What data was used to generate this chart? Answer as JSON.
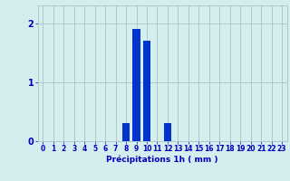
{
  "categories": [
    0,
    1,
    2,
    3,
    4,
    5,
    6,
    7,
    8,
    9,
    10,
    11,
    12,
    13,
    14,
    15,
    16,
    17,
    18,
    19,
    20,
    21,
    22,
    23
  ],
  "values": [
    0,
    0,
    0,
    0,
    0,
    0,
    0,
    0,
    0.3,
    1.9,
    1.7,
    0,
    0.3,
    0,
    0,
    0,
    0,
    0,
    0,
    0,
    0,
    0,
    0,
    0
  ],
  "bar_color": "#0033cc",
  "bg_color": "#d4eef0",
  "grid_color": "#afc8c8",
  "tick_color": "#0000bb",
  "xlabel": "Précipitations 1h ( mm )",
  "xlabel_fontsize": 6.5,
  "tick_fontsize": 5.5,
  "ytick_fontsize": 7.0,
  "ylabel_ticks": [
    0,
    1,
    2
  ],
  "xlim": [
    -0.5,
    23.5
  ],
  "ylim": [
    0,
    2.3
  ]
}
